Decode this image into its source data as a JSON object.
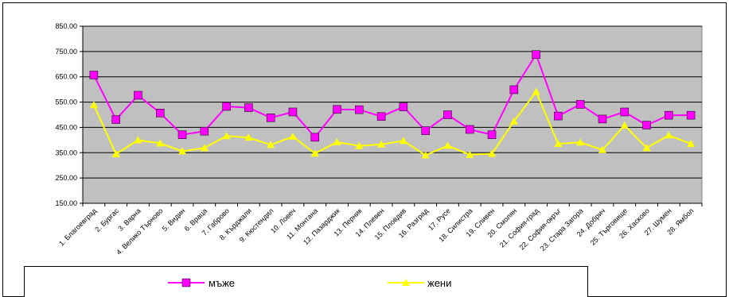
{
  "chart_data": {
    "type": "line",
    "categories": [
      "1. Благоевград",
      "2. Бургас",
      "3. Варна",
      "4. Велико Търново",
      "5. Видин",
      "6. Враца",
      "7. Габрово",
      "8. Кърджали",
      "9. Кюстендил",
      "10. Ловеч",
      "11. Монтана",
      "12. Пазарджик",
      "13. Перник",
      "14. Плевен",
      "15. Пловдив",
      "16. Разград",
      "17. Русе",
      "18. Силистра",
      "19. Сливен",
      "20. Смолян",
      "21. София-град",
      "22. София-окръг",
      "23. Стара Загора",
      "24. Добрич",
      "25. Търговище",
      "26. Хасково",
      "27. Шумен",
      "28. Ямбол"
    ],
    "series": [
      {
        "name": "мъже",
        "color": "#ff00ff",
        "marker": "square",
        "values": [
          657,
          481,
          577,
          507,
          421,
          435,
          533,
          528,
          488,
          511,
          411,
          521,
          520,
          493,
          531,
          437,
          500,
          442,
          421,
          599,
          738,
          495,
          541,
          483,
          511,
          459,
          498,
          498
        ]
      },
      {
        "name": "жени",
        "color": "#ffff00",
        "marker": "triangle",
        "values": [
          539,
          345,
          400,
          387,
          356,
          369,
          416,
          410,
          381,
          414,
          347,
          392,
          377,
          383,
          397,
          340,
          378,
          342,
          346,
          474,
          591,
          385,
          391,
          361,
          458,
          369,
          419,
          385
        ]
      }
    ],
    "yticks": [
      "150.00",
      "250.00",
      "350.00",
      "450.00",
      "550.00",
      "650.00",
      "750.00",
      "850.00"
    ],
    "ylim": [
      150,
      850
    ],
    "grid": true,
    "plot_background": "#c0c0c0",
    "legend_position": "bottom"
  }
}
